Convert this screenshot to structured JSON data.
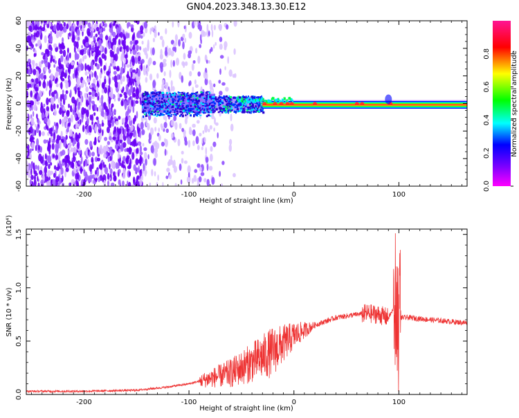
{
  "title": "GN04.2023.348.13.30.E12",
  "chart_data": [
    {
      "type": "heatmap",
      "xlabel": "Height of straight line (km)",
      "ylabel": "Frequency (Hz)",
      "xlim": [
        -255,
        165
      ],
      "ylim": [
        -60,
        60
      ],
      "x_ticks": [
        -200,
        -100,
        0,
        100
      ],
      "y_ticks": [
        -60,
        -40,
        -20,
        0,
        20,
        40,
        60
      ],
      "colorbar": {
        "label": "Normalized spectral amplitude",
        "range": [
          0,
          1
        ],
        "ticks": [
          "0.0",
          "0.2",
          "0.4",
          "0.6",
          "0.8"
        ],
        "colors": [
          "#ff00ff",
          "#6600ff",
          "#0000ff",
          "#00ffff",
          "#00ff00",
          "#ffff00",
          "#ff0000",
          "#ff1493"
        ]
      },
      "description_points": [
        {
          "x": -140,
          "note_amp": 0.3
        },
        {
          "x": -30,
          "note_amp": 0.9
        },
        {
          "x": 0,
          "note_amp": 0.95
        },
        {
          "x": 100,
          "note_amp": 0.95
        }
      ]
    },
    {
      "type": "line",
      "xlabel": "Height of straight line (km)",
      "ylabel": "SNR (10 * v/v)",
      "multiplier": "(x10⁴)",
      "xlim": [
        -255,
        165
      ],
      "ylim": [
        0,
        1.55
      ],
      "x_ticks": [
        -200,
        -100,
        0,
        100
      ],
      "y_ticks": [
        "0.0",
        "0.5",
        "1.0",
        "1.5"
      ],
      "color": "#ee3333",
      "x": [
        -255,
        -200,
        -150,
        -120,
        -100,
        -80,
        -60,
        -40,
        -20,
        0,
        20,
        40,
        60,
        70,
        80,
        90,
        95,
        100,
        110,
        130,
        165
      ],
      "y": [
        0.03,
        0.03,
        0.04,
        0.07,
        0.1,
        0.15,
        0.2,
        0.3,
        0.4,
        0.55,
        0.65,
        0.72,
        0.75,
        0.76,
        0.75,
        0.72,
        0.8,
        0.72,
        0.72,
        0.7,
        0.67
      ]
    }
  ],
  "tick_labels": {
    "x": [
      "-200",
      "-100",
      "0",
      "100"
    ],
    "y_top": [
      "-60",
      "-40",
      "-20",
      "0",
      "20",
      "40",
      "60"
    ],
    "y_bottom": [
      "0.0",
      "0.5",
      "1.0",
      "1.5"
    ]
  }
}
